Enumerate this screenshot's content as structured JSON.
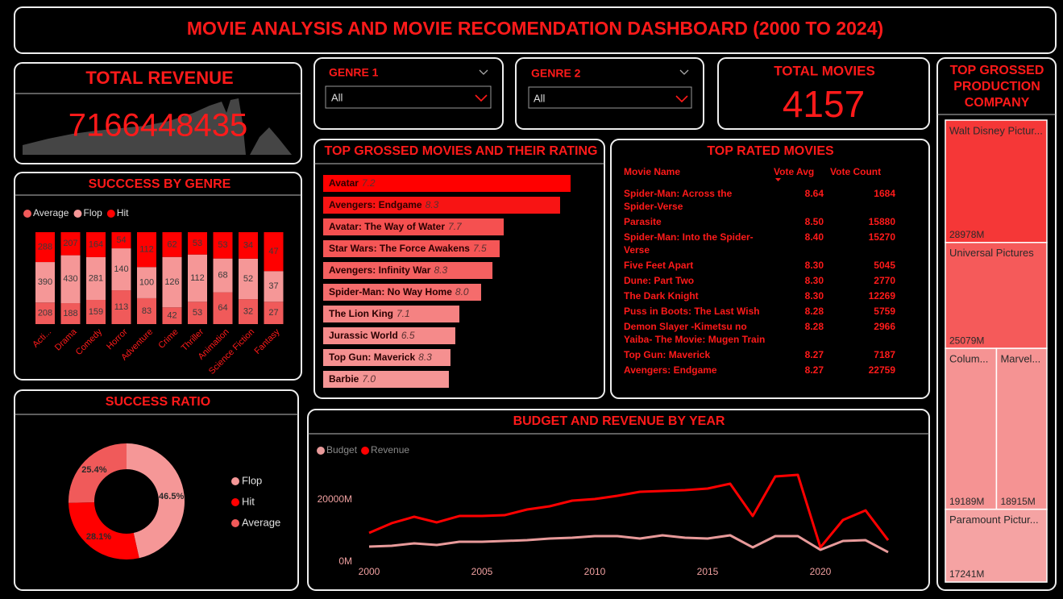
{
  "title": "MOVIE ANALYSIS AND MOVIE RECOMENDATION DASHBOARD  (2000 TO 2024)",
  "total_revenue": {
    "label": "TOTAL REVENUE",
    "value": 7166448435
  },
  "slicers": [
    {
      "label": "GENRE 1",
      "selection": "All"
    },
    {
      "label": "GENRE 2",
      "selection": "All"
    }
  ],
  "total_movies": {
    "label": "TOTAL MOVIES",
    "value": 4157
  },
  "top_rated": {
    "title": "TOP RATED MOVIES",
    "columns": [
      "Movie Name",
      "Vote Avg",
      "Vote Count"
    ],
    "rows": [
      [
        "Spider-Man: Across the Spider-Verse",
        "8.64",
        "1684"
      ],
      [
        "Parasite",
        "8.50",
        "15880"
      ],
      [
        "Spider-Man: Into the Spider-Verse",
        "8.40",
        "15270"
      ],
      [
        "Five Feet Apart",
        "8.30",
        "5045"
      ],
      [
        "Dune: Part Two",
        "8.30",
        "2770"
      ],
      [
        "The Dark Knight",
        "8.30",
        "12269"
      ],
      [
        "Puss in Boots: The Last Wish",
        "8.28",
        "5759"
      ],
      [
        "Demon Slayer -Kimetsu no Yaiba- The Movie: Mugen Train",
        "8.28",
        "2966"
      ],
      [
        "Top Gun: Maverick",
        "8.27",
        "7187"
      ],
      [
        "Avengers: Endgame",
        "8.27",
        "22759"
      ]
    ]
  },
  "chart_data": [
    {
      "type": "stacked_bar",
      "title": "SUCCCESS BY GENRE",
      "normalized": true,
      "legend": "top-left",
      "categories": [
        "Acti...",
        "Drama",
        "Comedy",
        "Horror",
        "Adventure",
        "Crime",
        "Thriller",
        "Animation",
        "Science Fiction",
        "Fantasy"
      ],
      "series": [
        {
          "name": "Average",
          "color": "#f05a5a",
          "values": [
            208,
            188,
            159,
            113,
            83,
            42,
            53,
            64,
            32,
            27
          ]
        },
        {
          "name": "Flop",
          "color": "#f59797",
          "values": [
            390,
            430,
            281,
            140,
            100,
            126,
            112,
            68,
            52,
            37
          ]
        },
        {
          "name": "Hit",
          "color": "#ff0000",
          "values": [
            288,
            207,
            164,
            54,
            112,
            62,
            53,
            53,
            34,
            47
          ]
        }
      ]
    },
    {
      "type": "hbar",
      "title": "TOP GROSSED MOVIES AND THEIR RATING",
      "categories": [
        "Avatar",
        "Avengers: Endgame",
        "Avatar: The Way of Water",
        "Star Wars: The Force Awakens",
        "Avengers: Infinity War",
        "Spider-Man: No Way Home",
        "The Lion King",
        "Jurassic World",
        "Top Gun: Maverick",
        "Barbie"
      ],
      "values": [
        2923,
        2799,
        2133,
        2085,
        2000,
        1866,
        1609,
        1561,
        1504,
        1485
      ],
      "ratings": [
        "7.2",
        "8.3",
        "7.7",
        "7.5",
        "8.3",
        "8.0",
        "7.1",
        "6.5",
        "8.3",
        "7.0"
      ],
      "colors": [
        "#ff0000",
        "#f81414",
        "#f55050",
        "#f55656",
        "#f56060",
        "#f56c6c",
        "#f58282",
        "#f58a8a",
        "#f59090",
        "#f59595"
      ]
    },
    {
      "type": "donut",
      "title": "SUCCESS RATIO",
      "legend": "right",
      "categories": [
        "Flop",
        "Hit",
        "Average"
      ],
      "values": [
        46.5,
        28.1,
        25.4
      ],
      "value_labels": [
        "46.5%",
        "28.1%",
        "25.4%"
      ],
      "colors": [
        "#f59797",
        "#ff0000",
        "#f05a5a"
      ]
    },
    {
      "type": "line",
      "title": "BUDGET AND REVENUE BY YEAR",
      "legend": "top-left",
      "x": [
        2000,
        2001,
        2002,
        2003,
        2004,
        2005,
        2006,
        2007,
        2008,
        2009,
        2010,
        2011,
        2012,
        2013,
        2014,
        2015,
        2016,
        2017,
        2018,
        2019,
        2020,
        2021,
        2022,
        2023
      ],
      "series": [
        {
          "name": "Budget",
          "color": "#e89a9a",
          "values": [
            4940,
            5190,
            5970,
            5450,
            6490,
            6490,
            6750,
            7010,
            7530,
            7790,
            8310,
            8310,
            7530,
            8570,
            7790,
            7530,
            8570,
            4680,
            8310,
            8310,
            3900,
            6750,
            7010,
            3120
          ]
        },
        {
          "name": "Revenue",
          "color": "#ff0000",
          "values": [
            9350,
            12470,
            14550,
            12730,
            14800,
            14800,
            15060,
            16880,
            17920,
            19740,
            20260,
            21300,
            22600,
            22860,
            23120,
            23640,
            25190,
            14800,
            27530,
            28050,
            4680,
            13510,
            16600,
            7000
          ]
        }
      ],
      "xlim": [
        2000,
        2023
      ],
      "xticks": [
        2000,
        2005,
        2010,
        2015,
        2020
      ],
      "ylim": [
        0,
        31000
      ],
      "yticks": [
        {
          "value": 0,
          "label": "0M"
        },
        {
          "value": 20000,
          "label": "20000M"
        }
      ]
    },
    {
      "type": "treemap",
      "title": "TOP GROSSED PRODUCTION COMPANY",
      "categories": [
        "Walt Disney Pictur...",
        "Universal Pictures",
        "Colum...",
        "Marvel...",
        "Paramount Pictur..."
      ],
      "values": [
        28978,
        25079,
        19189,
        18915,
        17241
      ],
      "value_labels": [
        "28978M",
        "25079M",
        "19189M",
        "18915M",
        "17241M"
      ],
      "colors": [
        "#f53737",
        "#f55a5a",
        "#f59393",
        "#f59393",
        "#f5a3a3"
      ]
    }
  ]
}
